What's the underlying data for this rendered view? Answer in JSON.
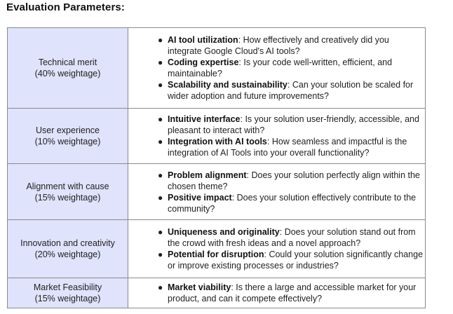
{
  "heading": "Evaluation Parameters:",
  "rows": [
    {
      "criterion": "Technical merit",
      "weightage": "(40% weightage)",
      "items": [
        {
          "term": "AI tool utilization",
          "text": ": How effectively and creatively did you integrate Google Cloud's AI tools?"
        },
        {
          "term": "Coding expertise",
          "text": ": Is your code well-written, efficient, and maintainable?"
        },
        {
          "term": "Scalability and sustainability",
          "text": ": Can your solution be scaled for wider adoption and future improvements?"
        }
      ]
    },
    {
      "criterion": "User experience",
      "weightage": "(10% weightage)",
      "items": [
        {
          "term": "Intuitive interface",
          "text": ": Is your solution user-friendly, accessible, and pleasant to interact with?"
        },
        {
          "term": "Integration with AI tools",
          "text": ": How seamless and impactful is the integration of AI Tools into your overall functionality?"
        }
      ]
    },
    {
      "criterion": "Alignment with cause",
      "weightage": "(15% weightage)",
      "items": [
        {
          "term": "Problem alignment",
          "text": ": Does your solution perfectly align within the chosen theme?"
        },
        {
          "term": "Positive impact",
          "text": ": Does your solution effectively contribute to the community?"
        }
      ]
    },
    {
      "criterion": "Innovation and creativity",
      "weightage": "(20% weightage)",
      "items": [
        {
          "term": "Uniqueness and originality",
          "text": ": Does your solution stand out from the crowd with fresh ideas and a novel approach?"
        },
        {
          "term": "Potential for disruption",
          "text": ": Could your solution significantly change or improve existing processes or industries?"
        }
      ]
    },
    {
      "criterion": "Market Feasibility",
      "weightage": "(15% weightage)",
      "items": [
        {
          "term": "Market viability",
          "text": ": Is there a large and accessible market for your product, and can it compete effectively?"
        }
      ]
    }
  ]
}
